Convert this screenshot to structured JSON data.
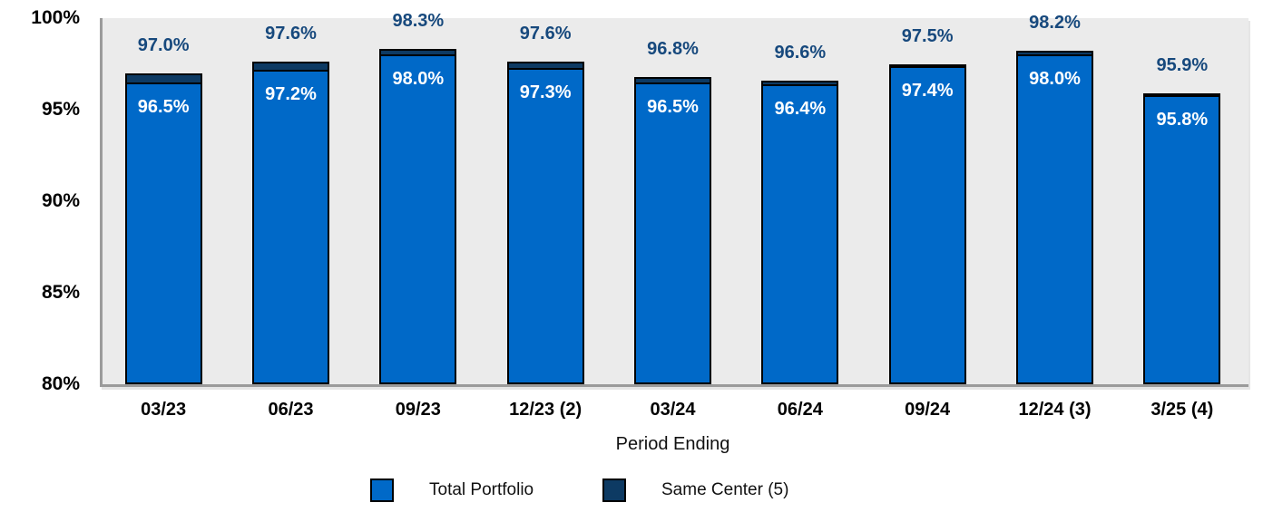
{
  "chart_data": {
    "type": "bar",
    "title": "",
    "xlabel": "Period Ending",
    "ylabel": "",
    "ylim": [
      80,
      100
    ],
    "yticks": [
      100,
      95,
      90,
      85,
      80
    ],
    "ytick_labels": [
      "100%",
      "95%",
      "90%",
      "85%",
      "80%"
    ],
    "categories": [
      "03/23",
      "06/23",
      "09/23",
      "12/23 (2)",
      "03/24",
      "06/24",
      "09/24",
      "12/24 (3)",
      "3/25 (4)"
    ],
    "series": [
      {
        "name": "Total Portfolio",
        "color": "#0069c8",
        "values": [
          96.5,
          97.2,
          98.0,
          97.3,
          96.5,
          96.4,
          97.4,
          98.0,
          95.8
        ],
        "labels": [
          "96.5%",
          "97.2%",
          "98.0%",
          "97.3%",
          "96.5%",
          "96.4%",
          "97.4%",
          "98.0%",
          "95.8%"
        ],
        "label_position": "inside-top",
        "label_color": "#ffffff"
      },
      {
        "name": "Same Center (5)",
        "color": "#0d3a63",
        "values": [
          97.0,
          97.6,
          98.3,
          97.6,
          96.8,
          96.6,
          97.5,
          98.2,
          95.9
        ],
        "labels": [
          "97.0%",
          "97.6%",
          "98.3%",
          "97.6%",
          "96.8%",
          "96.6%",
          "97.5%",
          "98.2%",
          "95.9%"
        ],
        "label_position": "above",
        "label_color": "#17497d"
      }
    ],
    "grid": false,
    "legend_position": "bottom",
    "plot_bg": "#ebebeb",
    "axis_color": "#9b9b9b",
    "bar_outline": "#000000"
  }
}
